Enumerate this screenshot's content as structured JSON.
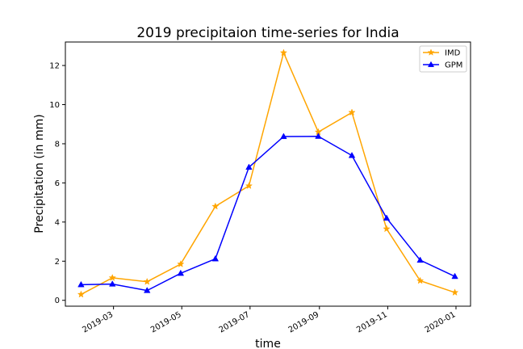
{
  "chart_data": {
    "type": "line",
    "title": "2019 precipitaion time-series for India",
    "xlabel": "time",
    "ylabel": "Precipitation (in mm)",
    "x": [
      "2019-01-31",
      "2019-02-28",
      "2019-03-31",
      "2019-04-30",
      "2019-05-31",
      "2019-06-30",
      "2019-07-31",
      "2019-08-31",
      "2019-09-30",
      "2019-10-31",
      "2019-11-30",
      "2019-12-31"
    ],
    "xticks": [
      "2019-03",
      "2019-05",
      "2019-07",
      "2019-09",
      "2019-11",
      "2020-01"
    ],
    "xtick_dates": [
      "2019-03-01",
      "2019-05-01",
      "2019-07-01",
      "2019-09-01",
      "2019-11-01",
      "2020-01-01"
    ],
    "xlim": [
      "2019-01-17",
      "2020-01-14"
    ],
    "yticks": [
      "0",
      "2",
      "4",
      "6",
      "8",
      "10",
      "12"
    ],
    "ylim": [
      -0.3,
      13.2
    ],
    "grid": false,
    "legend_position": "top-right",
    "series": [
      {
        "name": "IMD",
        "color": "#FFA500",
        "marker": "star",
        "values": [
          0.3,
          1.15,
          0.95,
          1.85,
          4.8,
          5.85,
          12.65,
          8.6,
          9.6,
          3.65,
          1.0,
          0.4
        ]
      },
      {
        "name": "GPM",
        "color": "#0000FF",
        "marker": "triangle",
        "values": [
          0.8,
          0.83,
          0.5,
          1.38,
          2.12,
          6.8,
          8.37,
          8.38,
          7.4,
          4.2,
          2.05,
          1.22
        ]
      }
    ]
  }
}
